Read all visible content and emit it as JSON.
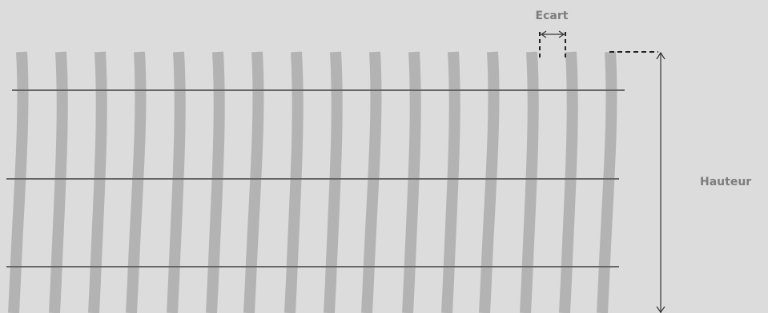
{
  "labels": {
    "gap": "Ecart",
    "height": "Hauteur"
  },
  "colors": {
    "background": "#dcdcdc",
    "slat": "#b3b3b3",
    "cable": "#666666",
    "annotation": "#333333",
    "label": "#7d7d7d"
  },
  "diagram": {
    "slat_count": 16,
    "cable_count": 3,
    "icons": {
      "gap_arrow": "double-arrow-horizontal-icon",
      "height_arrow": "double-arrow-vertical-icon"
    }
  }
}
